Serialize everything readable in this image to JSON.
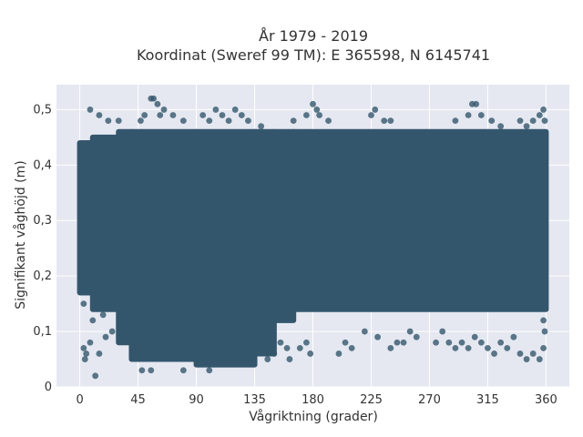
{
  "chart_data": {
    "type": "scatter",
    "title_line1": "År 1979 - 2019",
    "title_line2": "Koordinat (Sweref 99 TM): E 365598, N 6145741",
    "xlabel": "Vågriktning (grader)",
    "ylabel": "Signifikant våghöjd (m)",
    "xlim": [
      -18,
      378
    ],
    "ylim": [
      0,
      0.545
    ],
    "x_ticks": [
      0,
      45,
      90,
      135,
      180,
      225,
      270,
      315,
      360
    ],
    "x_tick_labels": [
      "0",
      "45",
      "90",
      "135",
      "180",
      "225",
      "270",
      "315",
      "360"
    ],
    "y_ticks": [
      0,
      0.1,
      0.2,
      0.3,
      0.4,
      0.5
    ],
    "y_tick_labels": [
      "0",
      "0,1",
      "0,2",
      "0,3",
      "0,4",
      "0,5"
    ],
    "grid": true,
    "legend": "none",
    "colors": {
      "marker": "#34566d",
      "plot_background": "#e5e8f1",
      "grid": "#ffffff"
    },
    "dense_band": [
      {
        "x_from": 0,
        "x_to": 10,
        "y_min": 0.17,
        "y_max": 0.44
      },
      {
        "x_from": 10,
        "x_to": 30,
        "y_min": 0.14,
        "y_max": 0.45
      },
      {
        "x_from": 30,
        "x_to": 40,
        "y_min": 0.08,
        "y_max": 0.46
      },
      {
        "x_from": 40,
        "x_to": 90,
        "y_min": 0.05,
        "y_max": 0.46
      },
      {
        "x_from": 90,
        "x_to": 135,
        "y_min": 0.04,
        "y_max": 0.46
      },
      {
        "x_from": 135,
        "x_to": 150,
        "y_min": 0.06,
        "y_max": 0.46
      },
      {
        "x_from": 150,
        "x_to": 165,
        "y_min": 0.12,
        "y_max": 0.46
      },
      {
        "x_from": 165,
        "x_to": 360,
        "y_min": 0.14,
        "y_max": 0.46
      }
    ],
    "outliers": [
      [
        3,
        0.15
      ],
      [
        3,
        0.07
      ],
      [
        4,
        0.05
      ],
      [
        5,
        0.06
      ],
      [
        8,
        0.08
      ],
      [
        12,
        0.02
      ],
      [
        15,
        0.06
      ],
      [
        20,
        0.09
      ],
      [
        25,
        0.1
      ],
      [
        10,
        0.12
      ],
      [
        18,
        0.13
      ],
      [
        8,
        0.5
      ],
      [
        15,
        0.49
      ],
      [
        22,
        0.48
      ],
      [
        30,
        0.48
      ],
      [
        55,
        0.52
      ],
      [
        57,
        0.52
      ],
      [
        60,
        0.51
      ],
      [
        62,
        0.49
      ],
      [
        65,
        0.5
      ],
      [
        50,
        0.49
      ],
      [
        47,
        0.48
      ],
      [
        72,
        0.49
      ],
      [
        80,
        0.48
      ],
      [
        95,
        0.49
      ],
      [
        100,
        0.48
      ],
      [
        105,
        0.5
      ],
      [
        110,
        0.49
      ],
      [
        115,
        0.48
      ],
      [
        120,
        0.5
      ],
      [
        125,
        0.49
      ],
      [
        130,
        0.48
      ],
      [
        140,
        0.47
      ],
      [
        48,
        0.03
      ],
      [
        55,
        0.03
      ],
      [
        80,
        0.03
      ],
      [
        100,
        0.03
      ],
      [
        145,
        0.05
      ],
      [
        150,
        0.06
      ],
      [
        155,
        0.08
      ],
      [
        160,
        0.07
      ],
      [
        162,
        0.05
      ],
      [
        170,
        0.07
      ],
      [
        175,
        0.08
      ],
      [
        178,
        0.06
      ],
      [
        165,
        0.48
      ],
      [
        175,
        0.49
      ],
      [
        180,
        0.51
      ],
      [
        183,
        0.5
      ],
      [
        185,
        0.49
      ],
      [
        192,
        0.48
      ],
      [
        200,
        0.06
      ],
      [
        205,
        0.08
      ],
      [
        210,
        0.07
      ],
      [
        220,
        0.1
      ],
      [
        230,
        0.09
      ],
      [
        225,
        0.49
      ],
      [
        228,
        0.5
      ],
      [
        235,
        0.48
      ],
      [
        240,
        0.48
      ],
      [
        240,
        0.07
      ],
      [
        245,
        0.08
      ],
      [
        250,
        0.08
      ],
      [
        255,
        0.1
      ],
      [
        260,
        0.09
      ],
      [
        275,
        0.08
      ],
      [
        280,
        0.1
      ],
      [
        285,
        0.08
      ],
      [
        290,
        0.07
      ],
      [
        295,
        0.08
      ],
      [
        300,
        0.07
      ],
      [
        305,
        0.09
      ],
      [
        310,
        0.08
      ],
      [
        290,
        0.48
      ],
      [
        300,
        0.49
      ],
      [
        303,
        0.51
      ],
      [
        306,
        0.51
      ],
      [
        310,
        0.49
      ],
      [
        318,
        0.48
      ],
      [
        325,
        0.47
      ],
      [
        315,
        0.07
      ],
      [
        320,
        0.06
      ],
      [
        325,
        0.08
      ],
      [
        330,
        0.07
      ],
      [
        335,
        0.09
      ],
      [
        340,
        0.06
      ],
      [
        345,
        0.05
      ],
      [
        350,
        0.06
      ],
      [
        355,
        0.05
      ],
      [
        358,
        0.07
      ],
      [
        359,
        0.1
      ],
      [
        358,
        0.12
      ],
      [
        340,
        0.48
      ],
      [
        345,
        0.47
      ],
      [
        350,
        0.48
      ],
      [
        355,
        0.49
      ],
      [
        358,
        0.5
      ],
      [
        359,
        0.48
      ]
    ]
  }
}
